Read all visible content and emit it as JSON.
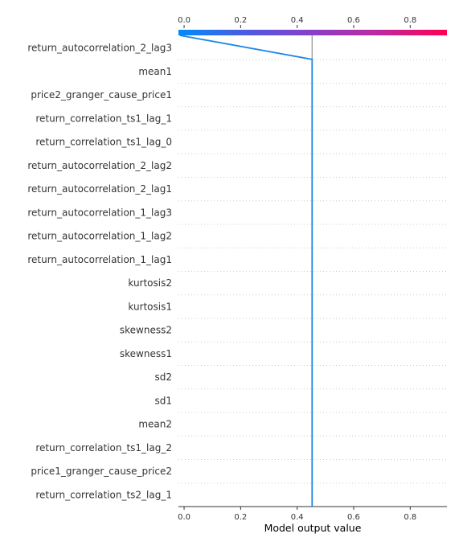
{
  "chart_data": {
    "type": "decision",
    "title": "",
    "xlabel": "Model output value",
    "ylabel": "",
    "xlim": [
      -0.02,
      0.93
    ],
    "x_ticks": [
      0.0,
      0.2,
      0.4,
      0.6,
      0.8
    ],
    "tick_labels": [
      "0.0",
      "0.2",
      "0.4",
      "0.6",
      "0.8"
    ],
    "base_value": 0.453,
    "features": [
      "return_autocorrelation_2_lag3",
      "mean1",
      "price2_granger_cause_price1",
      "return_correlation_ts1_lag_1",
      "return_correlation_ts1_lag_0",
      "return_autocorrelation_2_lag2",
      "return_autocorrelation_2_lag1",
      "return_autocorrelation_1_lag3",
      "return_autocorrelation_1_lag2",
      "return_autocorrelation_1_lag1",
      "kurtosis2",
      "kurtosis1",
      "skewness2",
      "skewness1",
      "sd2",
      "sd1",
      "mean2",
      "return_correlation_ts1_lag_2",
      "price1_granger_cause_price2",
      "return_correlation_ts2_lag_1"
    ],
    "path_values": [
      0.453,
      0.453,
      0.453,
      0.453,
      0.453,
      0.453,
      0.453,
      0.453,
      0.453,
      0.453,
      0.453,
      0.453,
      0.453,
      0.453,
      0.453,
      0.453,
      0.453,
      0.453,
      0.453,
      0.453,
      0.453,
      -0.015
    ],
    "colors": {
      "line": "#1E88E5",
      "base_line": "#999999",
      "grid": "#cccccc",
      "gradient": [
        "#008BFB",
        "#4C5BE2",
        "#8A3FC8",
        "#C0289E",
        "#FF0052"
      ]
    },
    "grid": true
  }
}
